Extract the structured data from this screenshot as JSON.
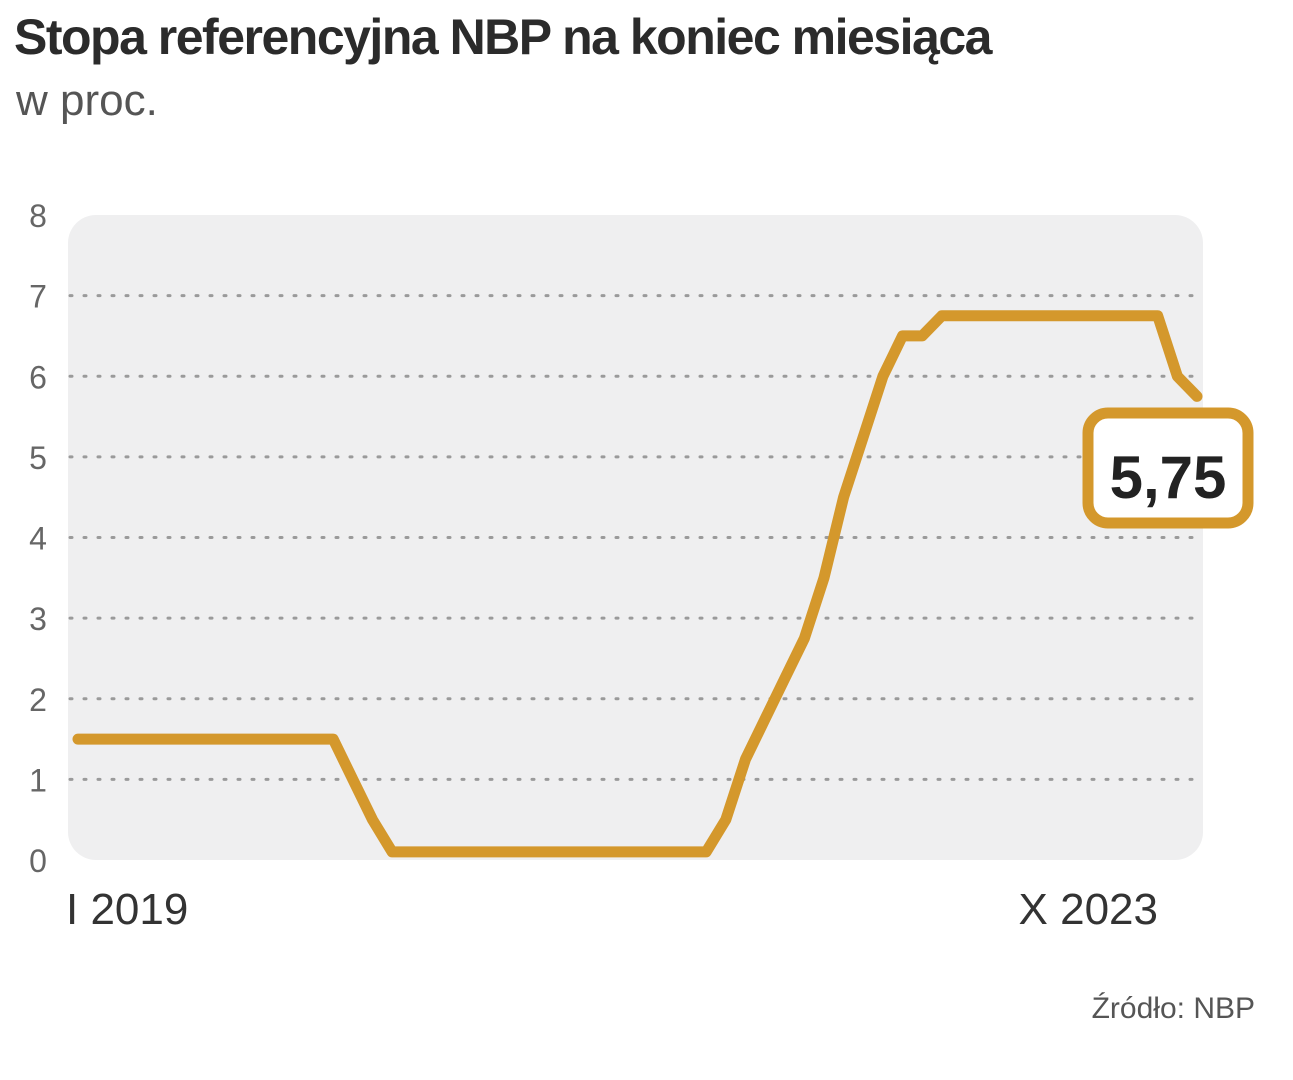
{
  "chart_data": {
    "type": "line",
    "title": "Stopa referencyjna NBP na koniec miesiąca",
    "subtitle": "w proc.",
    "ylim": [
      0,
      8
    ],
    "y_ticks": [
      "0",
      "1",
      "2",
      "3",
      "4",
      "5",
      "6",
      "7",
      "8"
    ],
    "x_tick_labels": [
      "I 2019",
      "X 2023"
    ],
    "grid": true,
    "series": [
      {
        "color": "#d4982c",
        "x": [
          "2019-01",
          "2019-02",
          "2019-03",
          "2019-04",
          "2019-05",
          "2019-06",
          "2019-07",
          "2019-08",
          "2019-09",
          "2019-10",
          "2019-11",
          "2019-12",
          "2020-01",
          "2020-02",
          "2020-03",
          "2020-04",
          "2020-05",
          "2020-06",
          "2020-07",
          "2020-08",
          "2020-09",
          "2020-10",
          "2020-11",
          "2020-12",
          "2021-01",
          "2021-02",
          "2021-03",
          "2021-04",
          "2021-05",
          "2021-06",
          "2021-07",
          "2021-08",
          "2021-09",
          "2021-10",
          "2021-11",
          "2021-12",
          "2022-01",
          "2022-02",
          "2022-03",
          "2022-04",
          "2022-05",
          "2022-06",
          "2022-07",
          "2022-08",
          "2022-09",
          "2022-10",
          "2022-11",
          "2022-12",
          "2023-01",
          "2023-02",
          "2023-03",
          "2023-04",
          "2023-05",
          "2023-06",
          "2023-07",
          "2023-08",
          "2023-09",
          "2023-10"
        ],
        "values": [
          1.5,
          1.5,
          1.5,
          1.5,
          1.5,
          1.5,
          1.5,
          1.5,
          1.5,
          1.5,
          1.5,
          1.5,
          1.5,
          1.5,
          1.0,
          0.5,
          0.1,
          0.1,
          0.1,
          0.1,
          0.1,
          0.1,
          0.1,
          0.1,
          0.1,
          0.1,
          0.1,
          0.1,
          0.1,
          0.1,
          0.1,
          0.1,
          0.1,
          0.5,
          1.25,
          1.75,
          2.25,
          2.75,
          3.5,
          4.5,
          5.25,
          6.0,
          6.5,
          6.5,
          6.75,
          6.75,
          6.75,
          6.75,
          6.75,
          6.75,
          6.75,
          6.75,
          6.75,
          6.75,
          6.75,
          6.75,
          6.0,
          5.75
        ]
      }
    ],
    "last_value_label": "5,75"
  },
  "source": "Źródło: NBP"
}
